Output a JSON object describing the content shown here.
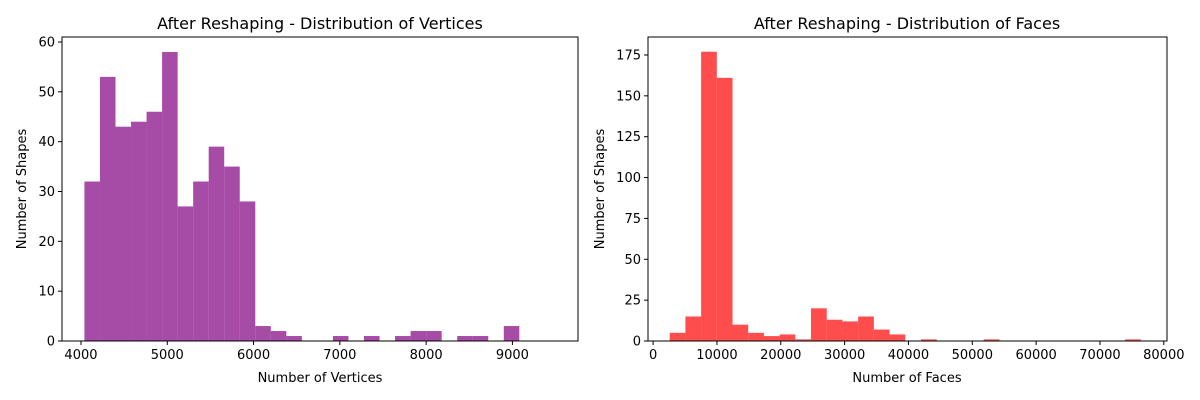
{
  "chart_data": [
    {
      "type": "histogram",
      "title": "After Reshaping - Distribution of Vertices",
      "xlabel": "Number of Vertices",
      "ylabel": "Number of Shapes",
      "xlim": [
        3780,
        9760
      ],
      "ylim": [
        0,
        61
      ],
      "xticks": [
        4000,
        5000,
        6000,
        7000,
        8000,
        9000
      ],
      "yticks": [
        0,
        10,
        20,
        30,
        40,
        50,
        60
      ],
      "color": "#800080",
      "opacity": 0.7,
      "grid": false,
      "bin_start": 4040,
      "bin_width": 180,
      "counts": [
        32,
        53,
        43,
        44,
        46,
        58,
        27,
        32,
        39,
        35,
        28,
        3,
        2,
        1,
        0,
        0,
        1,
        0,
        1,
        0,
        1,
        2,
        2,
        0,
        1,
        1,
        0,
        3
      ]
    },
    {
      "type": "histogram",
      "title": "After Reshaping - Distribution of Faces",
      "xlabel": "Number of Faces",
      "ylabel": "Number of Shapes",
      "xlim": [
        -800,
        80500
      ],
      "ylim": [
        0,
        186
      ],
      "xticks": [
        0,
        10000,
        20000,
        30000,
        40000,
        50000,
        60000,
        70000,
        80000
      ],
      "yticks": [
        0,
        25,
        50,
        75,
        100,
        125,
        150,
        175
      ],
      "color": "#FF0000",
      "opacity": 0.7,
      "grid": false,
      "bin_start": 2600,
      "bin_width": 2460,
      "counts": [
        5,
        15,
        177,
        161,
        10,
        5,
        3,
        4,
        1,
        20,
        13,
        12,
        15,
        7,
        4,
        0,
        1,
        0,
        0,
        0,
        1,
        0,
        0,
        0,
        0,
        0,
        0,
        0,
        0,
        1
      ]
    }
  ]
}
